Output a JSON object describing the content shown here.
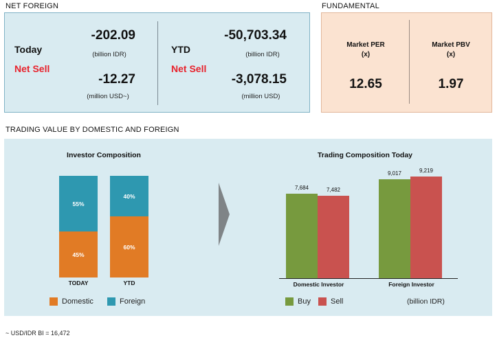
{
  "net_foreign": {
    "section_title": "NET FOREIGN",
    "today": {
      "label": "Today",
      "status": "Net Sell",
      "value_idr": "-202.09",
      "unit_idr": "(billion IDR)",
      "value_usd": "-12.27",
      "unit_usd": "(million USD~)"
    },
    "ytd": {
      "label": "YTD",
      "status": "Net Sell",
      "value_idr": "-50,703.34",
      "unit_idr": "(billion IDR)",
      "value_usd": "-3,078.15",
      "unit_usd": "(million USD)"
    }
  },
  "fundamental": {
    "section_title": "FUNDAMENTAL",
    "per": {
      "label": "Market PER",
      "unit": "(x)",
      "value": "12.65"
    },
    "pbv": {
      "label": "Market PBV",
      "unit": "(x)",
      "value": "1.97"
    }
  },
  "trading": {
    "section_title": "TRADING VALUE BY DOMESTIC AND FOREIGN",
    "composition": {
      "title": "Investor Composition",
      "today": {
        "label": "TODAY",
        "foreign_pct": "55%",
        "domestic_pct": "45%",
        "foreign": 55,
        "domestic": 45
      },
      "ytd": {
        "label": "YTD",
        "foreign_pct": "40%",
        "domestic_pct": "60%",
        "foreign": 40,
        "domestic": 60
      },
      "legend": {
        "domestic": "Domestic",
        "foreign": "Foreign"
      },
      "colors": {
        "domestic": "#e17b25",
        "foreign": "#2e98b0"
      }
    },
    "today_chart": {
      "title": "Trading Composition Today",
      "unit": "(billion IDR)",
      "legend": {
        "buy": "Buy",
        "sell": "Sell"
      },
      "colors": {
        "buy": "#779a3e",
        "sell": "#c9524f"
      }
    }
  },
  "chart_data": {
    "type": "bar",
    "title": "Trading Composition Today",
    "categories": [
      "Domestic Investor",
      "Foreign Investor"
    ],
    "series": [
      {
        "name": "Buy",
        "values": [
          7684,
          9017
        ],
        "labels": [
          "7,684",
          "9,017"
        ]
      },
      {
        "name": "Sell",
        "values": [
          7482,
          9219
        ],
        "labels": [
          "7,482",
          "9,219"
        ]
      }
    ],
    "ylim": [
      0,
      10000
    ],
    "grid": false,
    "legend": "bottom"
  },
  "footnote": "~ USD/IDR BI = 16,472"
}
